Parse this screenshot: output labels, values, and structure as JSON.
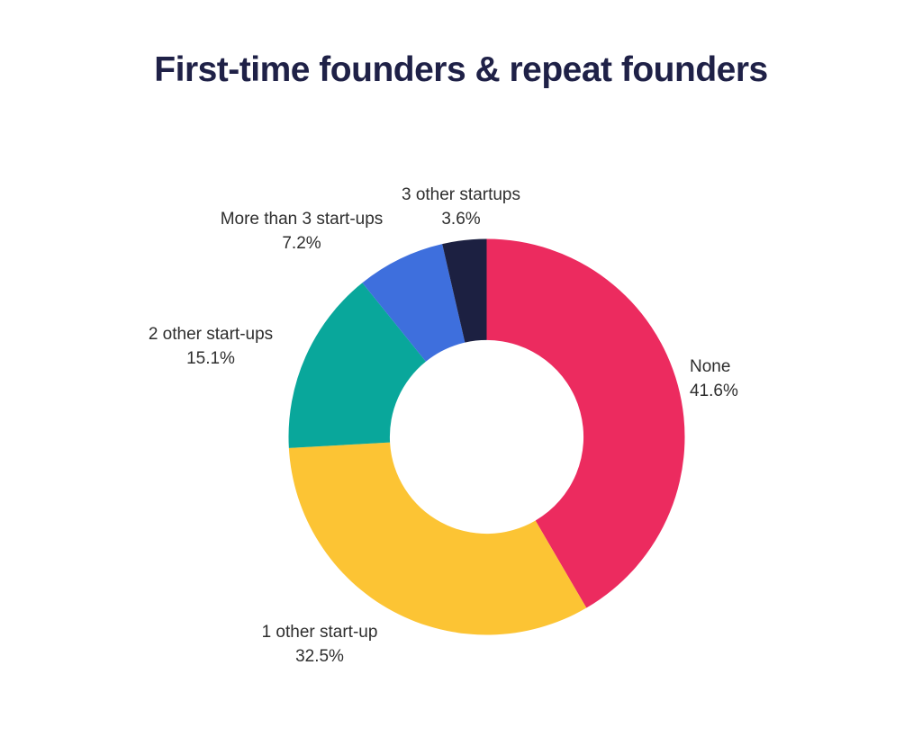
{
  "title": "First-time founders & repeat founders",
  "colors": {
    "background": "#FFFFFF",
    "title_text": "#1F2147",
    "label_text": "#2E2E2E"
  },
  "chart_data": {
    "type": "pie",
    "subtype": "donut",
    "title": "First-time founders & repeat founders",
    "start_angle_deg": 0,
    "direction": "clockwise",
    "inner_radius_ratio": 0.489,
    "legend_position": "labels-around-donut",
    "segments": [
      {
        "label": "None",
        "value": 41.6,
        "pct_text": "41.6%",
        "color": "#EC2B5F"
      },
      {
        "label": "1 other start-up",
        "value": 32.5,
        "pct_text": "32.5%",
        "color": "#FCC434"
      },
      {
        "label": "2 other start-ups",
        "value": 15.1,
        "pct_text": "15.1%",
        "color": "#09A79B"
      },
      {
        "label": "More than 3 start-ups",
        "value": 7.2,
        "pct_text": "7.2%",
        "color": "#3E6FDD"
      },
      {
        "label": "3 other startups",
        "value": 3.6,
        "pct_text": "3.6%",
        "color": "#1C2041"
      }
    ]
  }
}
